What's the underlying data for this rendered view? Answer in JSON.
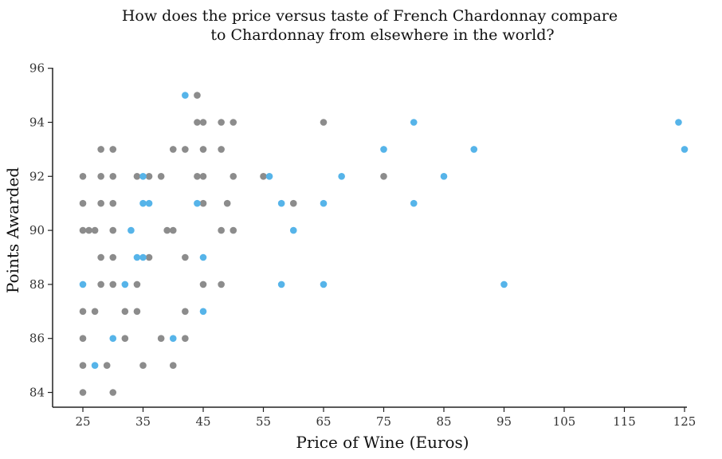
{
  "chart_data": {
    "type": "scatter",
    "title_line1": "How does the price versus taste of French Chardonnay compare",
    "title_line2": "to Chardonnay from elsewhere in the world?",
    "xlabel": "Price of Wine (Euros)",
    "ylabel": "Points Awarded",
    "xlim": [
      20,
      126
    ],
    "ylim": [
      83.5,
      96
    ],
    "x_ticks": [
      25,
      35,
      45,
      55,
      65,
      75,
      85,
      95,
      105,
      115,
      125
    ],
    "y_ticks": [
      84,
      86,
      88,
      90,
      92,
      94,
      96
    ],
    "grid": false,
    "series": [
      {
        "color": "#8c8c8c",
        "points": [
          [
            44,
            95
          ],
          [
            44,
            94
          ],
          [
            45,
            94
          ],
          [
            48,
            94
          ],
          [
            50,
            94
          ],
          [
            65,
            94
          ],
          [
            28,
            93
          ],
          [
            30,
            93
          ],
          [
            40,
            93
          ],
          [
            42,
            93
          ],
          [
            45,
            93
          ],
          [
            48,
            93
          ],
          [
            25,
            92
          ],
          [
            28,
            92
          ],
          [
            30,
            92
          ],
          [
            34,
            92
          ],
          [
            36,
            92
          ],
          [
            38,
            92
          ],
          [
            44,
            92
          ],
          [
            45,
            92
          ],
          [
            50,
            92
          ],
          [
            55,
            92
          ],
          [
            75,
            92
          ],
          [
            25,
            91
          ],
          [
            28,
            91
          ],
          [
            30,
            91
          ],
          [
            45,
            91
          ],
          [
            49,
            91
          ],
          [
            60,
            91
          ],
          [
            25,
            90
          ],
          [
            26,
            90
          ],
          [
            27,
            90
          ],
          [
            30,
            90
          ],
          [
            39,
            90
          ],
          [
            40,
            90
          ],
          [
            48,
            90
          ],
          [
            50,
            90
          ],
          [
            28,
            89
          ],
          [
            30,
            89
          ],
          [
            36,
            89
          ],
          [
            42,
            89
          ],
          [
            28,
            88
          ],
          [
            30,
            88
          ],
          [
            34,
            88
          ],
          [
            45,
            88
          ],
          [
            48,
            88
          ],
          [
            25,
            87
          ],
          [
            27,
            87
          ],
          [
            32,
            87
          ],
          [
            34,
            87
          ],
          [
            42,
            87
          ],
          [
            25,
            86
          ],
          [
            32,
            86
          ],
          [
            38,
            86
          ],
          [
            42,
            86
          ],
          [
            25,
            85
          ],
          [
            29,
            85
          ],
          [
            35,
            85
          ],
          [
            40,
            85
          ],
          [
            25,
            84
          ],
          [
            30,
            84
          ]
        ]
      },
      {
        "color": "#56b4e9",
        "points": [
          [
            42,
            95
          ],
          [
            80,
            94
          ],
          [
            124,
            94
          ],
          [
            75,
            93
          ],
          [
            90,
            93
          ],
          [
            125,
            93
          ],
          [
            35,
            92
          ],
          [
            56,
            92
          ],
          [
            68,
            92
          ],
          [
            85,
            92
          ],
          [
            35,
            91
          ],
          [
            36,
            91
          ],
          [
            44,
            91
          ],
          [
            58,
            91
          ],
          [
            65,
            91
          ],
          [
            80,
            91
          ],
          [
            33,
            90
          ],
          [
            60,
            90
          ],
          [
            34,
            89
          ],
          [
            35,
            89
          ],
          [
            45,
            89
          ],
          [
            25,
            88
          ],
          [
            32,
            88
          ],
          [
            58,
            88
          ],
          [
            65,
            88
          ],
          [
            95,
            88
          ],
          [
            45,
            87
          ],
          [
            30,
            86
          ],
          [
            40,
            86
          ],
          [
            27,
            85
          ]
        ]
      }
    ]
  }
}
